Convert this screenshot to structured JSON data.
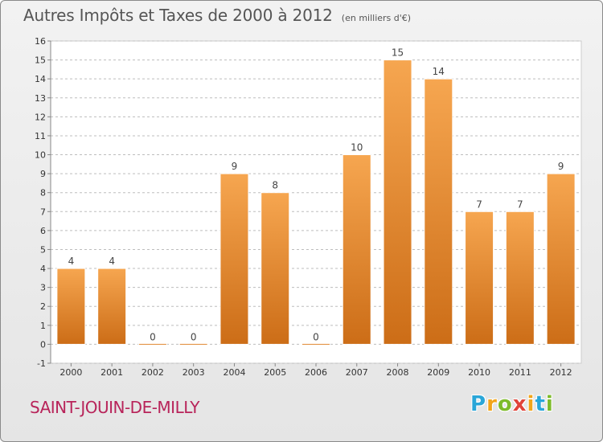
{
  "title": "Autres Impôts et Taxes de 2000 à 2012",
  "subtitle": "(en milliers d'€)",
  "location": "SAINT-JOUIN-DE-MILLY",
  "brand": {
    "letters": [
      "P",
      "r",
      "o",
      "x",
      "i",
      "t",
      "i"
    ],
    "colors": [
      "#2aa6d8",
      "#f2a51a",
      "#7dbb2a",
      "#e0433a",
      "#f2a51a",
      "#2aa6d8",
      "#7dbb2a"
    ]
  },
  "colors": {
    "bar_light": "#f6a650",
    "bar_dark": "#cc6d17",
    "grid": "#bdbdbd",
    "title": "#555555",
    "location": "#b8245a"
  },
  "chart_data": {
    "type": "bar",
    "categories": [
      "2000",
      "2001",
      "2002",
      "2003",
      "2004",
      "2005",
      "2006",
      "2007",
      "2008",
      "2009",
      "2010",
      "2011",
      "2012"
    ],
    "values": [
      4,
      4,
      0,
      0,
      9,
      8,
      0,
      10,
      15,
      14,
      7,
      7,
      9
    ],
    "value_labels": [
      "4",
      "4",
      "0",
      "0",
      "9",
      "8",
      "0",
      "10",
      "15",
      "14",
      "7",
      "7",
      "9"
    ],
    "y_ticks": [
      "-1",
      "0",
      "1",
      "2",
      "3",
      "4",
      "5",
      "6",
      "7",
      "8",
      "9",
      "10",
      "11",
      "12",
      "13",
      "14",
      "15",
      "16"
    ],
    "ylim": [
      -1,
      16
    ],
    "grid": "horizontal dashed",
    "title": "Autres Impôts et Taxes de 2000 à 2012",
    "xlabel": "",
    "ylabel": ""
  }
}
